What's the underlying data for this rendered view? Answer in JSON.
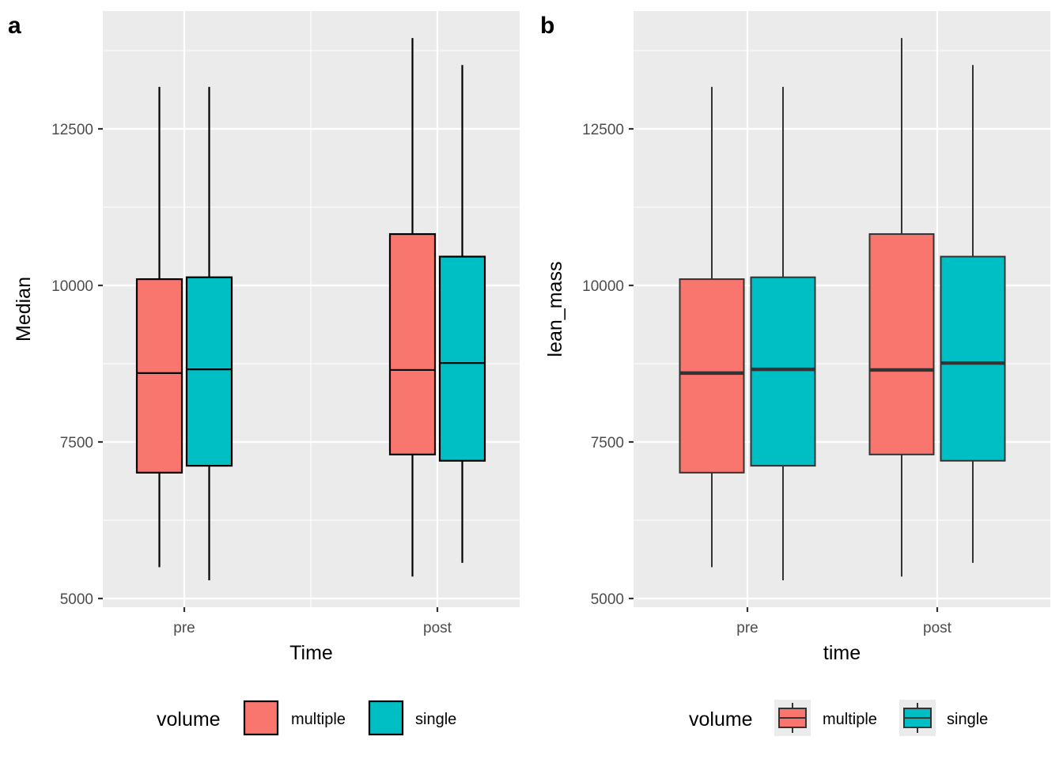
{
  "chart_data": [
    {
      "tag": "a",
      "type": "boxplot",
      "xlabel": "Time",
      "ylabel": "Median",
      "categories": [
        "pre",
        "post"
      ],
      "ylim": [
        4800,
        14300
      ],
      "yticks": [
        5000,
        7500,
        10000,
        12500
      ],
      "ytick_labels": [
        "5000",
        "7500",
        "10000",
        "12500"
      ],
      "grid": true,
      "style": "black-outline",
      "legend": {
        "title": "volume",
        "position": "bottom",
        "key": "square",
        "entries": [
          {
            "label": "multiple",
            "color": "#F8766D"
          },
          {
            "label": "single",
            "color": "#00BFC4"
          }
        ]
      },
      "series": [
        {
          "name": "multiple",
          "color": "#F8766D",
          "boxes": [
            {
              "category": "pre",
              "min": 5500,
              "q1": 7010,
              "median": 8600,
              "q3": 10100,
              "max": 13170
            },
            {
              "category": "post",
              "min": 5350,
              "q1": 7300,
              "median": 8650,
              "q3": 10820,
              "max": 13950
            }
          ]
        },
        {
          "name": "single",
          "color": "#00BFC4",
          "boxes": [
            {
              "category": "pre",
              "min": 5290,
              "q1": 7120,
              "median": 8660,
              "q3": 10130,
              "max": 13170
            },
            {
              "category": "post",
              "min": 5570,
              "q1": 7200,
              "median": 8760,
              "q3": 10460,
              "max": 13520
            }
          ]
        }
      ]
    },
    {
      "tag": "b",
      "type": "boxplot",
      "xlabel": "time",
      "ylabel": "lean_mass",
      "categories": [
        "pre",
        "post"
      ],
      "ylim": [
        4800,
        14300
      ],
      "yticks": [
        5000,
        7500,
        10000,
        12500
      ],
      "ytick_labels": [
        "5000",
        "7500",
        "10000",
        "12500"
      ],
      "grid": true,
      "style": "default",
      "legend": {
        "title": "volume",
        "position": "bottom",
        "key": "boxplot",
        "entries": [
          {
            "label": "multiple",
            "color": "#F8766D"
          },
          {
            "label": "single",
            "color": "#00BFC4"
          }
        ]
      },
      "series": [
        {
          "name": "multiple",
          "color": "#F8766D",
          "boxes": [
            {
              "category": "pre",
              "min": 5500,
              "q1": 7010,
              "median": 8600,
              "q3": 10100,
              "max": 13170
            },
            {
              "category": "post",
              "min": 5350,
              "q1": 7300,
              "median": 8650,
              "q3": 10820,
              "max": 13950
            }
          ]
        },
        {
          "name": "single",
          "color": "#00BFC4",
          "boxes": [
            {
              "category": "pre",
              "min": 5290,
              "q1": 7120,
              "median": 8660,
              "q3": 10130,
              "max": 13170
            },
            {
              "category": "post",
              "min": 5570,
              "q1": 7200,
              "median": 8760,
              "q3": 10460,
              "max": 13520
            }
          ]
        }
      ]
    }
  ]
}
